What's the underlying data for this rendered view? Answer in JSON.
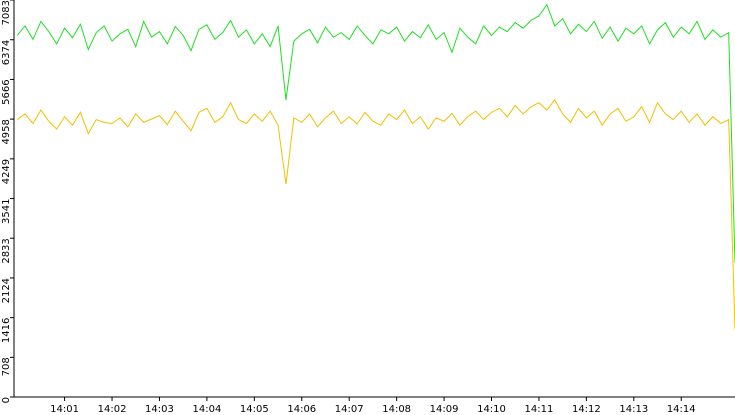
{
  "chart_data": {
    "type": "line",
    "x": [
      "14:00:00",
      "14:00:10",
      "14:00:20",
      "14:00:30",
      "14:00:40",
      "14:00:50",
      "14:01:00",
      "14:01:10",
      "14:01:20",
      "14:01:30",
      "14:01:40",
      "14:01:50",
      "14:02:00",
      "14:02:10",
      "14:02:20",
      "14:02:30",
      "14:02:40",
      "14:02:50",
      "14:03:00",
      "14:03:10",
      "14:03:20",
      "14:03:30",
      "14:03:40",
      "14:03:50",
      "14:04:00",
      "14:04:10",
      "14:04:20",
      "14:04:30",
      "14:04:40",
      "14:04:50",
      "14:05:00",
      "14:05:10",
      "14:05:20",
      "14:05:30",
      "14:05:40",
      "14:05:50",
      "14:06:00",
      "14:06:10",
      "14:06:20",
      "14:06:30",
      "14:06:40",
      "14:06:50",
      "14:07:00",
      "14:07:10",
      "14:07:20",
      "14:07:30",
      "14:07:40",
      "14:07:50",
      "14:08:00",
      "14:08:10",
      "14:08:20",
      "14:08:30",
      "14:08:40",
      "14:08:50",
      "14:09:00",
      "14:09:10",
      "14:09:20",
      "14:09:30",
      "14:09:40",
      "14:09:50",
      "14:10:00",
      "14:10:10",
      "14:10:20",
      "14:10:30",
      "14:10:40",
      "14:10:50",
      "14:11:00",
      "14:11:10",
      "14:11:20",
      "14:11:30",
      "14:11:40",
      "14:11:50",
      "14:12:00",
      "14:12:10",
      "14:12:20",
      "14:12:30",
      "14:12:40",
      "14:12:50",
      "14:13:00",
      "14:13:10",
      "14:13:20",
      "14:13:30",
      "14:13:40",
      "14:13:50",
      "14:14:00",
      "14:14:10",
      "14:14:20",
      "14:14:30",
      "14:14:40",
      "14:14:50",
      "14:15:00",
      "14:15:08"
    ],
    "series": [
      {
        "color": "#22dd22",
        "values": [
          6450,
          6620,
          6380,
          6700,
          6520,
          6300,
          6580,
          6410,
          6650,
          6200,
          6500,
          6620,
          6350,
          6480,
          6560,
          6250,
          6700,
          6420,
          6520,
          6300,
          6610,
          6450,
          6180,
          6560,
          6640,
          6380,
          6500,
          6720,
          6420,
          6550,
          6300,
          6480,
          6250,
          6620,
          5300,
          6350,
          6480,
          6560,
          6320,
          6600,
          6420,
          6500,
          6380,
          6620,
          6450,
          6300,
          6550,
          6480,
          6600,
          6350,
          6520,
          6410,
          6640,
          6380,
          6500,
          6150,
          6580,
          6420,
          6300,
          6620,
          6450,
          6600,
          6520,
          6680,
          6580,
          6720,
          6800,
          7000,
          6620,
          6750,
          6480,
          6650,
          6520,
          6700,
          6400,
          6600,
          6350,
          6580,
          6480,
          6620,
          6300,
          6550,
          6680,
          6420,
          6600,
          6480,
          6700,
          6380,
          6550,
          6420,
          6500,
          2400
        ]
      },
      {
        "color": "#f0c000",
        "values": [
          4950,
          5050,
          4880,
          5120,
          4920,
          4780,
          5000,
          4850,
          5080,
          4700,
          4950,
          4900,
          4880,
          4980,
          4820,
          5050,
          4900,
          4960,
          5020,
          4860,
          5100,
          4920,
          4750,
          5080,
          5150,
          4900,
          5000,
          5250,
          4950,
          4880,
          5050,
          4920,
          5100,
          4850,
          3800,
          4980,
          4900,
          5050,
          4820,
          4980,
          5100,
          4880,
          5000,
          4870,
          5080,
          4920,
          4850,
          5050,
          4950,
          5120,
          4880,
          5000,
          4780,
          4980,
          4920,
          5060,
          4850,
          5000,
          5100,
          4950,
          5080,
          5150,
          5000,
          5200,
          5050,
          5180,
          5250,
          5120,
          5300,
          5050,
          4900,
          5150,
          4980,
          5100,
          4850,
          5050,
          5150,
          4920,
          5000,
          5180,
          4900,
          5250,
          5050,
          4950,
          5100,
          4900,
          5050,
          4850,
          5000,
          4880,
          4950,
          1200
        ]
      }
    ],
    "xlim": [
      "13:59:56",
      "14:15:08"
    ],
    "xticks": [
      "14:01",
      "14:02",
      "14:03",
      "14:04",
      "14:05",
      "14:06",
      "14:07",
      "14:08",
      "14:09",
      "14:10",
      "14:11",
      "14:12",
      "14:13",
      "14:14"
    ],
    "ylim": [
      0,
      7083
    ],
    "yticks": [
      0,
      708,
      1416,
      2124,
      2833,
      3541,
      4249,
      4958,
      5666,
      6374,
      7083
    ]
  }
}
